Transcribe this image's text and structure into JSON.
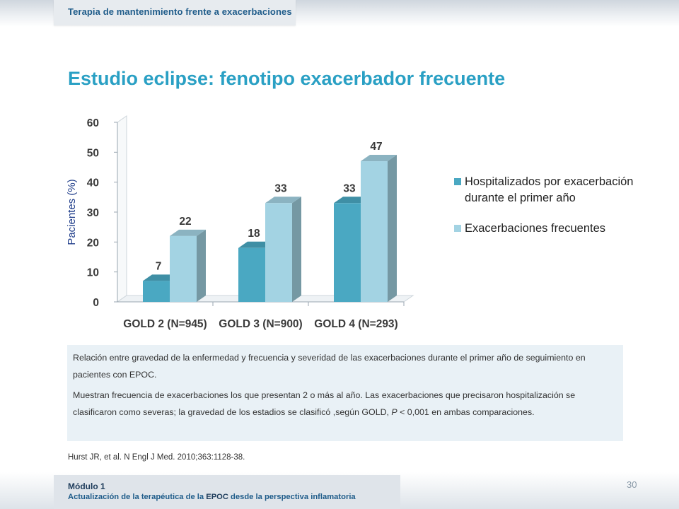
{
  "header": {
    "section_tab": "Terapia de mantenimiento frente a exacerbaciones"
  },
  "slide": {
    "title": "Estudio eclipse: fenotipo exacerbador frecuente"
  },
  "chart_data": {
    "type": "bar",
    "style": "3d-clustered",
    "ylabel": "Pacientes (%)",
    "xlabel": "",
    "ylim": [
      0,
      60
    ],
    "yticks": [
      0,
      10,
      20,
      30,
      40,
      50,
      60
    ],
    "categories": [
      "GOLD 2 (N=945)",
      "GOLD 3 (N=900)",
      "GOLD 4 (N=293)"
    ],
    "series": [
      {
        "name": "Hospitalizados por exacerbación durante el primer año",
        "legend_lines": [
          "Hospitalizados por exacerbación",
          "durante el primer año"
        ],
        "values": [
          7,
          18,
          33
        ],
        "color": "#4aa8c2"
      },
      {
        "name": "Exacerbaciones frecuentes",
        "legend_lines": [
          "Exacerbaciones frecuentes"
        ],
        "values": [
          22,
          33,
          47
        ],
        "color": "#a3d3e3"
      }
    ],
    "legend_position": "right"
  },
  "info_box": {
    "paragraph1": "Relación entre gravedad de la enfermedad y frecuencia y severidad de las exacerbaciones durante el primer año de seguimiento en pacientes con EPOC.",
    "paragraph2_start": "Muestran frecuencia de exacerbaciones los que presentan 2 o más al año. Las exacerbaciones que precisaron hospitalización se clasificaron como severas; la gravedad de los estadios se clasificó ,según GOLD, ",
    "paragraph2_p": "P",
    "paragraph2_end": " < 0,001 en ambas comparaciones."
  },
  "citation": "Hurst JR, et al. N Engl J Med. 2010;363:1128-38.",
  "page_number": "30",
  "footer": {
    "module_label": "Módulo 1",
    "subtitle_part1": "Actualización de la terapéutica de la ",
    "subtitle_epoc": "EPOC",
    "subtitle_part2": " desde la perspectiva inflamatoria"
  }
}
